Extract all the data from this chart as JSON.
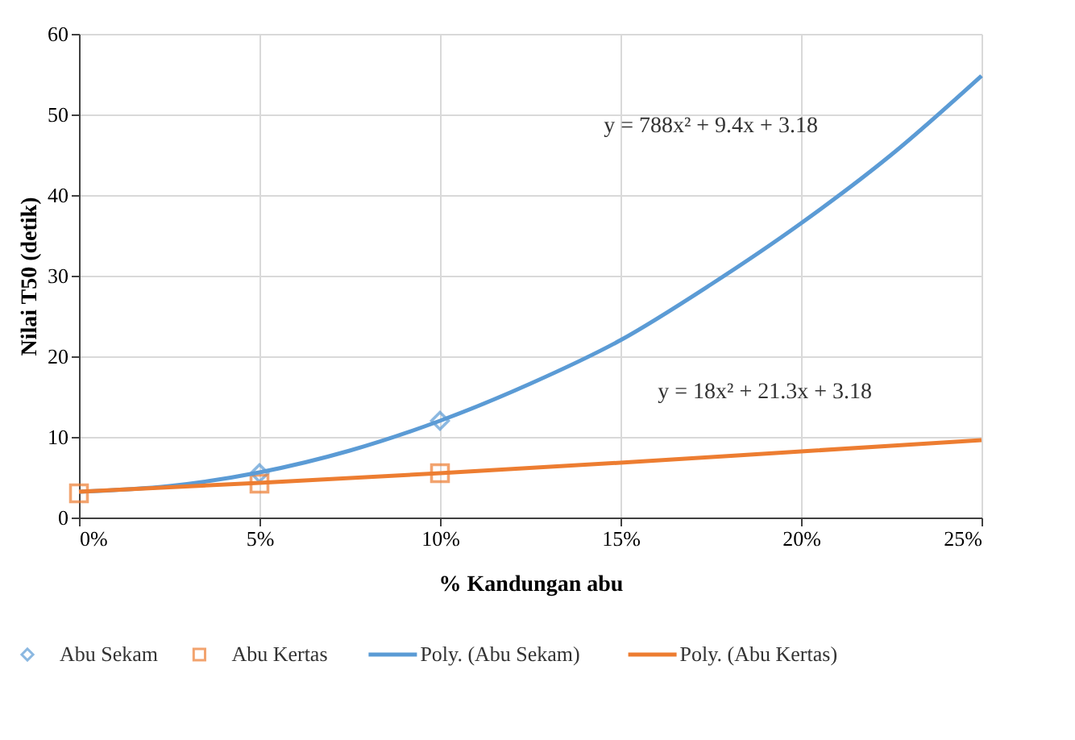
{
  "chart_data": {
    "type": "scatter",
    "xlabel": "% Kandungan abu",
    "ylabel": "Nilai T50 (detik)",
    "xlim": [
      0,
      0.25
    ],
    "ylim": [
      0,
      60
    ],
    "xticks": [
      {
        "value": 0,
        "label": "0%"
      },
      {
        "value": 0.05,
        "label": "5%"
      },
      {
        "value": 0.1,
        "label": "10%"
      },
      {
        "value": 0.15,
        "label": "15%"
      },
      {
        "value": 0.2,
        "label": "20%"
      },
      {
        "value": 0.25,
        "label": "25%"
      }
    ],
    "yticks": [
      0,
      10,
      20,
      30,
      40,
      50,
      60
    ],
    "grid": true,
    "legend": "bottom",
    "series": [
      {
        "name": "Abu Sekam",
        "marker": "diamond",
        "color": "#5b9bd5",
        "x": [
          0.05,
          0.1
        ],
        "values": [
          5.5,
          12
        ]
      },
      {
        "name": "Abu Kertas",
        "marker": "square",
        "color": "#ed7d31",
        "x": [
          0,
          0.05,
          0.1
        ],
        "values": [
          3,
          4.2,
          5.5
        ]
      },
      {
        "name": "Poly. (Abu Sekam)",
        "type": "line",
        "color": "#5b9bd5",
        "x": [
          0,
          0.025,
          0.05,
          0.075,
          0.1,
          0.125,
          0.15,
          0.175,
          0.2,
          0.225,
          0.25
        ],
        "values": [
          3.2,
          3.9,
          5.6,
          8.3,
          12,
          16.6,
          22,
          28.9,
          36.5,
          45,
          54.8
        ]
      },
      {
        "name": "Poly. (Abu Kertas)",
        "type": "line",
        "color": "#ed7d31",
        "x": [
          0,
          0.05,
          0.1,
          0.15,
          0.2,
          0.25
        ],
        "values": [
          3.2,
          4.3,
          5.5,
          6.8,
          8.2,
          9.6
        ]
      }
    ],
    "annotations": [
      "y = 788x² + 9.4x + 3.18",
      "y = 18x² + 21.3x + 3.18"
    ]
  }
}
